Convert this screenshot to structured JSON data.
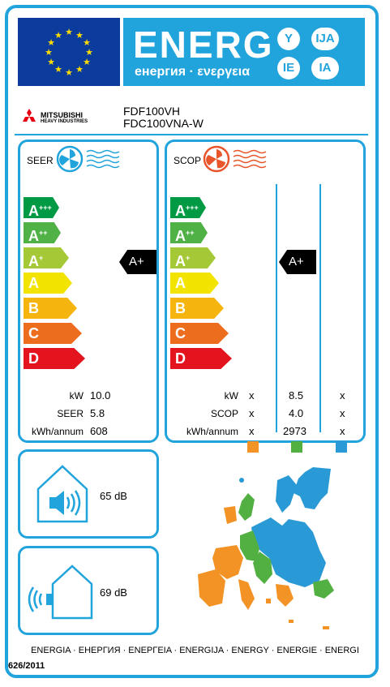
{
  "header": {
    "energ": "ENERG",
    "subtitle": "енергия · ενεργεια",
    "lang_codes": [
      "Y",
      "IJA",
      "IE",
      "IA"
    ]
  },
  "supplier": {
    "brand": "MITSUBISHI",
    "brand_sub": "HEAVY INDUSTRIES",
    "models": [
      "FDF100VH",
      "FDC100VNA-W"
    ]
  },
  "scale": [
    "A+++",
    "A++",
    "A+",
    "A",
    "B",
    "C",
    "D"
  ],
  "seer": {
    "title": "SEER",
    "rating": "A+",
    "rows": [
      {
        "label": "kW",
        "value": "10.0"
      },
      {
        "label": "SEER",
        "value": "5.8"
      },
      {
        "label": "kWh/annum",
        "value": "608"
      }
    ]
  },
  "scop": {
    "title": "SCOP",
    "rating": "A+",
    "rows": [
      {
        "label": "kW",
        "cols": [
          "x",
          "8.5",
          "x"
        ]
      },
      {
        "label": "SCOP",
        "cols": [
          "x",
          "4.0",
          "x"
        ]
      },
      {
        "label": "kWh/annum",
        "cols": [
          "x",
          "2973",
          "x"
        ]
      }
    ],
    "zone_colors": [
      "#f39325",
      "#52b043",
      "#2a9ad6"
    ]
  },
  "noise": {
    "indoor": "65 dB",
    "outdoor": "69 dB"
  },
  "footer": {
    "energy_words": "ENERGIA · ЕНЕРГИЯ · ΕΝΕΡΓΕΙΑ · ENERGIJA · ENERGY · ENERGIE · ENERGI",
    "regulation": "626/2011"
  },
  "colors": {
    "accent": "#21a3dc",
    "scale": [
      "#009a44",
      "#4fb146",
      "#a5c836",
      "#f2e400",
      "#f6b50e",
      "#ec6d1e",
      "#e3141d"
    ]
  }
}
